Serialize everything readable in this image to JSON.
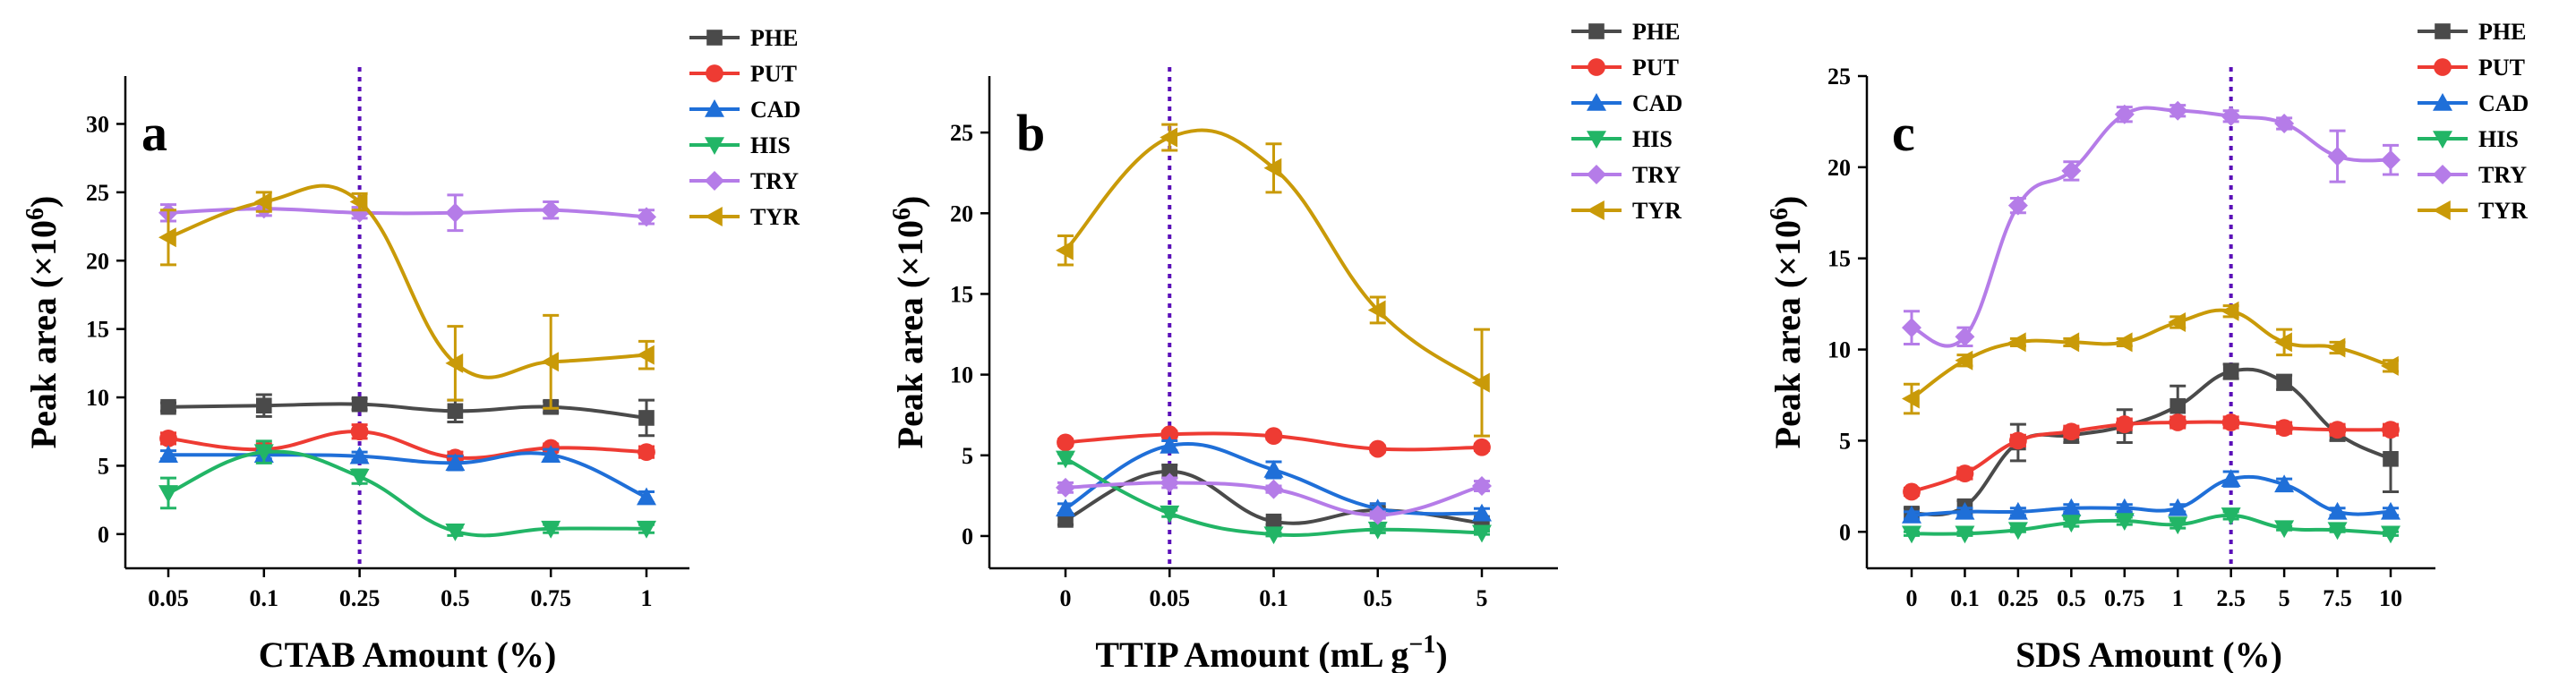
{
  "figure": {
    "panels": [
      "a",
      "b",
      "c"
    ]
  },
  "chart_data": [
    {
      "type": "line",
      "panel_label": "a",
      "xlabel": "CTAB Amount (%)",
      "ylabel": "Peak area (×10^6)",
      "categories": [
        "0.05",
        "0.1",
        "0.25",
        "0.5",
        "0.75",
        "1"
      ],
      "ylim": [
        -2.5,
        33.5
      ],
      "yticks": [
        0,
        5,
        10,
        15,
        20,
        25,
        30
      ],
      "optimum_marker_category": "0.25",
      "legend_position": "top-right",
      "grid": false,
      "series": [
        {
          "name": "PHE",
          "color": "#4a4a4a",
          "marker": "square",
          "values": [
            9.3,
            9.4,
            9.5,
            9.0,
            9.3,
            8.5
          ],
          "errors": [
            0.3,
            0.8,
            0.4,
            0.8,
            0.4,
            1.3
          ]
        },
        {
          "name": "PUT",
          "color": "#ee3b33",
          "marker": "circle",
          "values": [
            7.0,
            6.2,
            7.5,
            5.6,
            6.3,
            6.0
          ],
          "errors": [
            0.4,
            0.4,
            0.5,
            0.4,
            0.3,
            0.4
          ]
        },
        {
          "name": "CAD",
          "color": "#1f6fd8",
          "marker": "triangle-up",
          "values": [
            5.8,
            5.8,
            5.7,
            5.2,
            5.8,
            2.7
          ],
          "errors": [
            0.3,
            0.3,
            0.3,
            0.5,
            0.4,
            0.4
          ]
        },
        {
          "name": "HIS",
          "color": "#22b566",
          "marker": "triangle-down",
          "values": [
            3.0,
            6.0,
            4.2,
            0.2,
            0.4,
            0.4
          ],
          "errors": [
            1.1,
            0.8,
            0.5,
            0.3,
            0.3,
            0.3
          ]
        },
        {
          "name": "TRY",
          "color": "#b57ce8",
          "marker": "diamond",
          "values": [
            23.5,
            23.8,
            23.5,
            23.5,
            23.7,
            23.2
          ],
          "errors": [
            0.6,
            0.5,
            0.4,
            1.3,
            0.6,
            0.5
          ]
        },
        {
          "name": "TYR",
          "color": "#c99a08",
          "marker": "triangle-left",
          "values": [
            21.7,
            24.3,
            24.3,
            12.5,
            12.6,
            13.1
          ],
          "errors": [
            2.0,
            0.7,
            0.6,
            2.7,
            3.4,
            1.0
          ]
        }
      ]
    },
    {
      "type": "line",
      "panel_label": "b",
      "xlabel": "TTIP Amount (mL g−1)",
      "ylabel": "Peak area (×10^6)",
      "categories": [
        "0",
        "0.05",
        "0.1",
        "0.5",
        "5"
      ],
      "ylim": [
        -2.0,
        28.5
      ],
      "yticks": [
        0,
        5,
        10,
        15,
        20,
        25
      ],
      "optimum_marker_category": "0.05",
      "legend_position": "top-right",
      "grid": false,
      "series": [
        {
          "name": "PHE",
          "color": "#4a4a4a",
          "marker": "square",
          "values": [
            1.0,
            4.0,
            0.9,
            1.6,
            0.8
          ],
          "errors": [
            0.3,
            0.4,
            0.2,
            0.2,
            0.2
          ]
        },
        {
          "name": "PUT",
          "color": "#ee3b33",
          "marker": "circle",
          "values": [
            5.8,
            6.3,
            6.2,
            5.4,
            5.5
          ],
          "errors": [
            0.2,
            0.2,
            0.2,
            0.2,
            0.2
          ]
        },
        {
          "name": "CAD",
          "color": "#1f6fd8",
          "marker": "triangle-up",
          "values": [
            1.7,
            5.6,
            4.1,
            1.7,
            1.4
          ],
          "errors": [
            0.3,
            0.3,
            0.5,
            0.3,
            0.3
          ]
        },
        {
          "name": "HIS",
          "color": "#22b566",
          "marker": "triangle-down",
          "values": [
            4.8,
            1.4,
            0.1,
            0.4,
            0.2
          ],
          "errors": [
            0.3,
            0.2,
            0.1,
            0.2,
            0.1
          ]
        },
        {
          "name": "TRY",
          "color": "#b57ce8",
          "marker": "diamond",
          "values": [
            3.0,
            3.3,
            2.9,
            1.3,
            3.1
          ],
          "errors": [
            0.3,
            0.3,
            0.2,
            0.2,
            0.3
          ]
        },
        {
          "name": "TYR",
          "color": "#c99a08",
          "marker": "triangle-left",
          "values": [
            17.7,
            24.7,
            22.8,
            14.0,
            9.5
          ],
          "errors": [
            0.9,
            0.8,
            1.5,
            0.8,
            3.3
          ]
        }
      ]
    },
    {
      "type": "line",
      "panel_label": "c",
      "xlabel": "SDS Amount (%)",
      "ylabel": "Peak area (×10^6)",
      "categories": [
        "0",
        "0.1",
        "0.25",
        "0.5",
        "0.75",
        "1",
        "2.5",
        "5",
        "7.5",
        "10"
      ],
      "ylim": [
        -2.0,
        25.0
      ],
      "yticks": [
        0,
        5,
        10,
        15,
        20,
        25
      ],
      "optimum_marker_category": "2.5",
      "legend_position": "top-right",
      "grid": false,
      "series": [
        {
          "name": "PHE",
          "color": "#4a4a4a",
          "marker": "square",
          "values": [
            1.0,
            1.4,
            4.9,
            5.3,
            5.8,
            6.9,
            8.8,
            8.2,
            5.4,
            4.0
          ],
          "errors": [
            0.3,
            0.3,
            1.0,
            0.4,
            0.9,
            1.1,
            0.4,
            0.4,
            0.4,
            1.8
          ]
        },
        {
          "name": "PUT",
          "color": "#ee3b33",
          "marker": "circle",
          "values": [
            2.2,
            3.2,
            5.0,
            5.5,
            5.9,
            6.0,
            6.0,
            5.7,
            5.6,
            5.6
          ],
          "errors": [
            0.2,
            0.3,
            0.3,
            0.3,
            0.3,
            0.3,
            0.3,
            0.3,
            0.3,
            0.3
          ]
        },
        {
          "name": "CAD",
          "color": "#1f6fd8",
          "marker": "triangle-up",
          "values": [
            0.9,
            1.1,
            1.1,
            1.3,
            1.3,
            1.3,
            2.9,
            2.6,
            1.1,
            1.1
          ],
          "errors": [
            0.2,
            0.2,
            0.2,
            0.2,
            0.2,
            0.2,
            0.4,
            0.3,
            0.2,
            0.2
          ]
        },
        {
          "name": "HIS",
          "color": "#22b566",
          "marker": "triangle-down",
          "values": [
            -0.1,
            -0.1,
            0.1,
            0.5,
            0.6,
            0.4,
            0.9,
            0.2,
            0.1,
            -0.1
          ],
          "errors": [
            0.1,
            0.1,
            0.1,
            0.2,
            0.2,
            0.2,
            0.2,
            0.1,
            0.1,
            0.1
          ]
        },
        {
          "name": "TRY",
          "color": "#b57ce8",
          "marker": "diamond",
          "values": [
            11.2,
            10.7,
            17.9,
            19.8,
            22.9,
            23.1,
            22.8,
            22.4,
            20.6,
            20.4
          ],
          "errors": [
            0.9,
            0.5,
            0.4,
            0.5,
            0.4,
            0.3,
            0.3,
            0.3,
            1.4,
            0.8
          ]
        },
        {
          "name": "TYR",
          "color": "#c99a08",
          "marker": "triangle-left",
          "values": [
            7.3,
            9.4,
            10.4,
            10.4,
            10.4,
            11.5,
            12.1,
            10.4,
            10.1,
            9.1
          ],
          "errors": [
            0.8,
            0.3,
            0.2,
            0.2,
            0.2,
            0.3,
            0.3,
            0.7,
            0.3,
            0.3
          ]
        }
      ]
    }
  ]
}
